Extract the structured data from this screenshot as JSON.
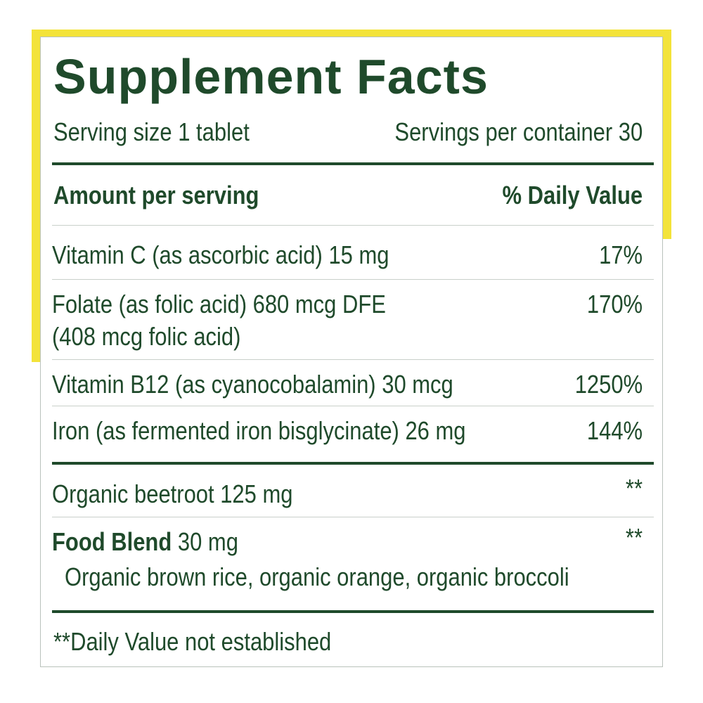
{
  "header": {
    "title": "Supplement Facts",
    "serving_size": "Serving size 1 tablet",
    "servings_per_container": "Servings per container 30"
  },
  "table": {
    "columns": [
      "Amount per serving",
      "% Daily Value"
    ],
    "rows": [
      {
        "lines": [
          "Vitamin C (as ascorbic acid) 15 mg"
        ],
        "dv": "17%"
      },
      {
        "lines": [
          "Folate (as folic acid) 680 mcg DFE",
          "(408 mcg folic acid)"
        ],
        "dv": "170%"
      },
      {
        "lines": [
          "Vitamin B12 (as cyanocobalamin) 30 mcg"
        ],
        "dv": "1250%"
      },
      {
        "lines": [
          "Iron (as fermented iron bisglycinate) 26 mg"
        ],
        "dv": "144%"
      }
    ]
  },
  "other": [
    {
      "name": "Organic beetroot 125 mg",
      "dv": "**"
    },
    {
      "name": "Food Blend",
      "amount": "30 mg",
      "dv": "**",
      "ingredients": "Organic brown rice, organic orange, organic broccoli"
    }
  ],
  "footnote": "**Daily Value not established"
}
